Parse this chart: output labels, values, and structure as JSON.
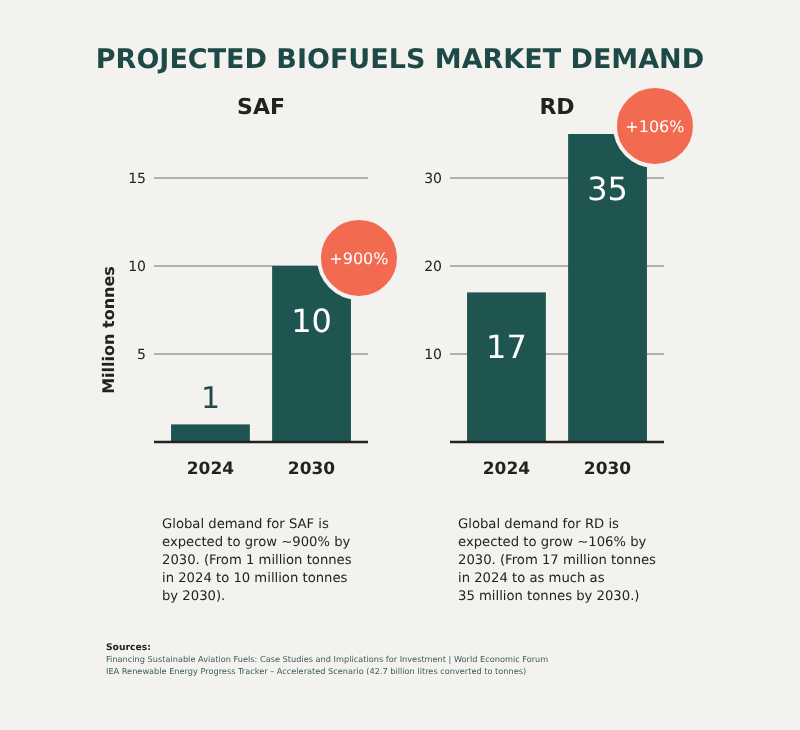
{
  "chart_data": [
    {
      "type": "bar",
      "title": "SAF",
      "ylabel": "Million tonnes",
      "categories": [
        "2024",
        "2030"
      ],
      "values": [
        1,
        10
      ],
      "color": "#1f5550",
      "ylim": [
        0,
        15
      ],
      "yticks": [
        5,
        10,
        15
      ],
      "grid": "y",
      "data_labels": true,
      "annotations": [
        "PROJECTED BIOFUELS MARKET DEMAND",
        {
          "text": "+900%",
          "x": "2030",
          "y": 10
        },
        "Global demand for SAF is\nexpected to grow ~900% by\n2030. (From 1 million tonnes\nin 2024 to 10 million tonnes\nby 2030)."
      ]
    },
    {
      "type": "bar",
      "title": "RD",
      "categories": [
        "2024",
        "2030"
      ],
      "values": [
        17,
        35
      ],
      "color": "#1f5550",
      "ylim": [
        0,
        35
      ],
      "yticks": [
        10,
        20,
        30
      ],
      "grid": "y",
      "data_labels": true,
      "annotations": [
        {
          "text": "+106%",
          "x": "2030",
          "y": 35
        },
        "Global demand for RD is\nexpected to grow ~106% by\n2030. (From 17 million tonnes\nin 2024 to as much as\n35 million tonnes by 2030.)",
        "Sources:",
        "Financing Sustainable Aviation Fuels: Case Studies and Implications for Investment | World Economic Forum",
        "IEA Renewable Energy Progress Tracker – Accelerated Scenario (42.7 billion litres converted to tonnes)"
      ]
    }
  ]
}
